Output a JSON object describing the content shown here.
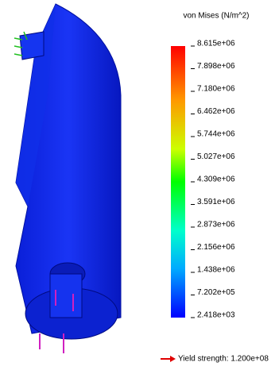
{
  "legend": {
    "title": "von Mises (N/m^2)",
    "labels": [
      "8.615e+06",
      "7.898e+06",
      "7.180e+06",
      "6.462e+06",
      "5.744e+06",
      "5.027e+06",
      "4.309e+06",
      "3.591e+06",
      "2.873e+06",
      "2.156e+06",
      "1.438e+06",
      "7.202e+05",
      "2.418e+03"
    ]
  },
  "yield_strength": "Yield strength: 1.200e+08"
}
